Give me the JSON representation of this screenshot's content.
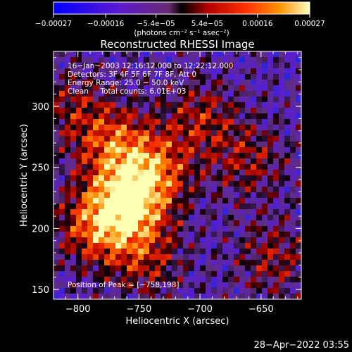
{
  "chart_data": {
    "type": "heatmap",
    "title": "Reconstructed RHESSI Image",
    "xlabel": "Heliocentric X (arcsec)",
    "ylabel": "Heliocentric Y (arcsec)",
    "x_range": [
      -820,
      -617
    ],
    "y_range": [
      142,
      345
    ],
    "x_ticks": [
      -800,
      -750,
      -700,
      -650
    ],
    "y_ticks": [
      150,
      200,
      250,
      300
    ],
    "x_tick_labels": [
      "−800",
      "−750",
      "−700",
      "−650"
    ],
    "y_tick_labels": [
      "150",
      "200",
      "250",
      "300"
    ],
    "colorbar": {
      "range": [
        -0.00027,
        0.00027
      ],
      "tick_values": [
        -0.00027,
        -0.00016,
        -5.4e-05,
        5.4e-05,
        0.00016,
        0.00027
      ],
      "tick_labels": [
        "−0.00027",
        "−0.00016",
        "−5.4e−05",
        "5.4e−05",
        "0.00016",
        "0.00027"
      ],
      "unit_label": "(photons cm⁻² s⁻¹ asec⁻²)"
    },
    "annotations": {
      "time_line": "16−Jan−2003 12:16:12.000 to 12:22:12.000",
      "detectors_line": "Detectors: 3F 4F 5F 6F 7F 8F, Att 0",
      "energy_line": "Energy Range: 25.0 − 50.0 keV",
      "clean_line": "Clean     Total counts: 6.01E+03",
      "peak_line": "Position of Peak = [−758,198]"
    },
    "peak": {
      "x": -758,
      "y": 198
    },
    "features": [
      {
        "x": -762,
        "y": 218,
        "amplitude": 1.0
      },
      {
        "x": -740,
        "y": 246,
        "amplitude": 0.75
      },
      {
        "x": -772,
        "y": 270,
        "amplitude": 0.6
      },
      {
        "x": -788,
        "y": 200,
        "amplitude": 0.55
      },
      {
        "x": -700,
        "y": 290,
        "amplitude": 0.45
      },
      {
        "x": -660,
        "y": 255,
        "amplitude": 0.4
      },
      {
        "x": -640,
        "y": 175,
        "amplitude": 0.4
      },
      {
        "x": -805,
        "y": 300,
        "amplitude": 0.35
      },
      {
        "x": -745,
        "y": 175,
        "amplitude": 0.45
      }
    ]
  },
  "footer": {
    "timestamp": "28−Apr−2022 03:55"
  }
}
